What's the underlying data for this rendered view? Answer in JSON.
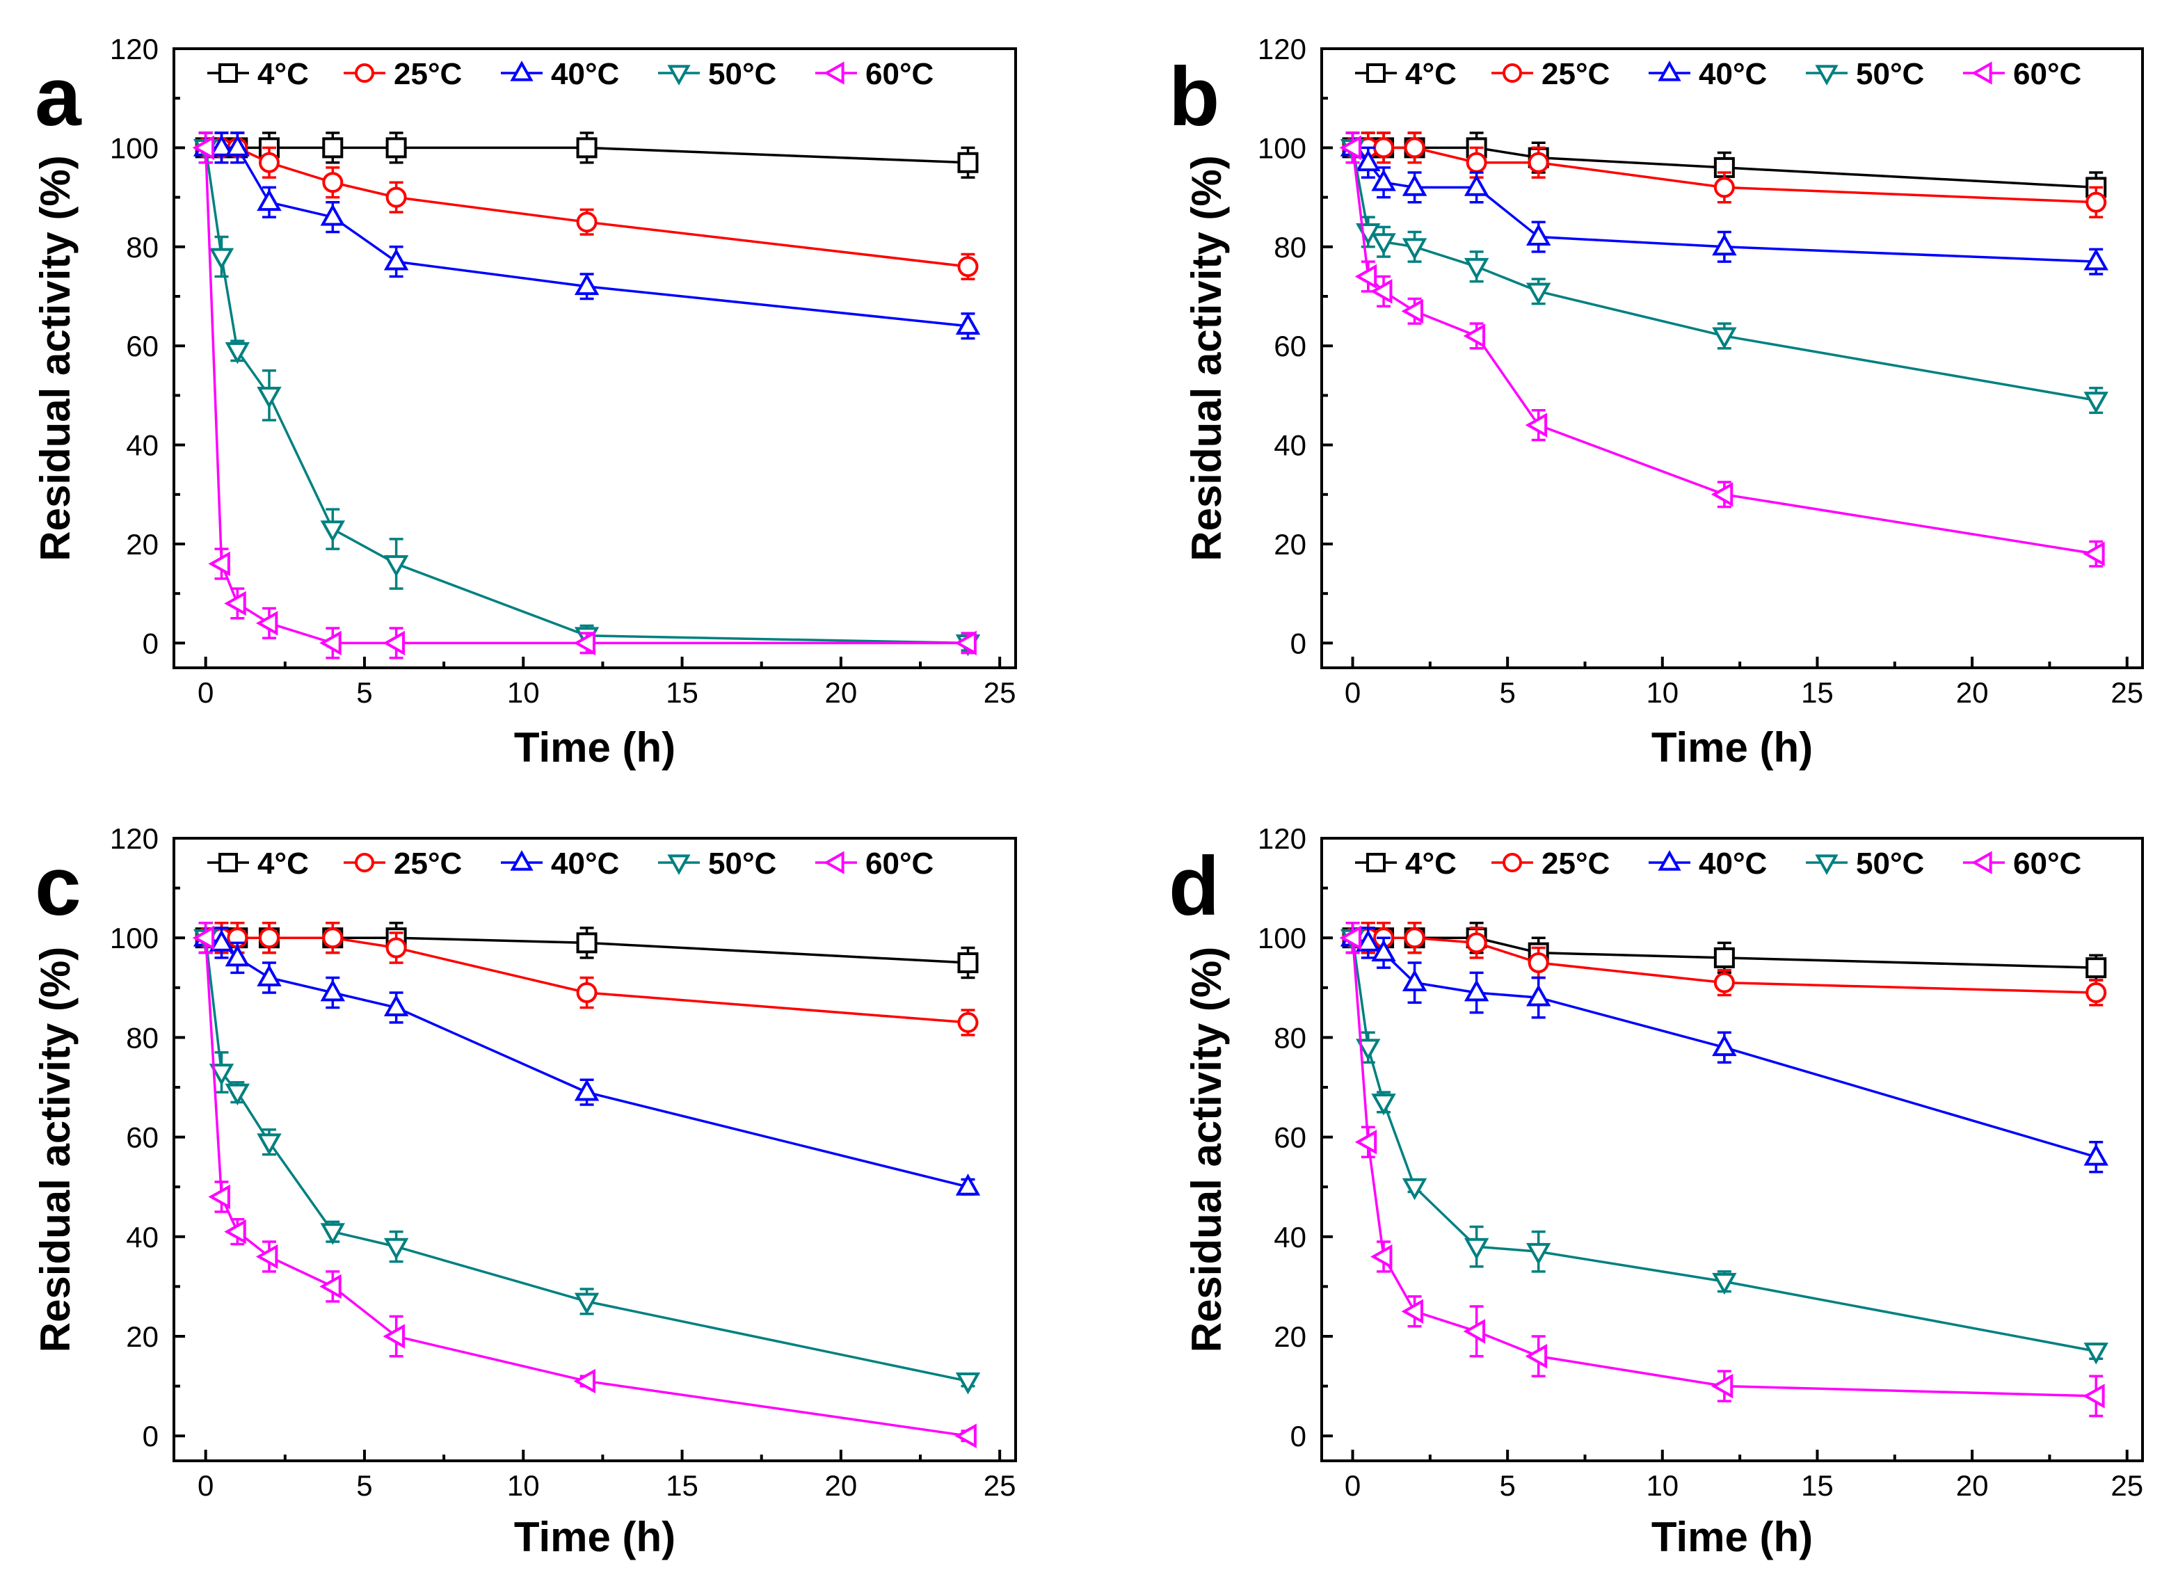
{
  "chart_data": [
    {
      "type": "line",
      "panel": "a",
      "xlabel": "Time (h)",
      "ylabel": "Residual activity (%)",
      "xlim": [
        -1,
        25.5
      ],
      "ylim": [
        -5,
        120
      ],
      "xticks": [
        0,
        5,
        10,
        15,
        20,
        25
      ],
      "yticks": [
        0,
        20,
        40,
        60,
        80,
        100,
        120
      ],
      "series": [
        {
          "name": "4°C",
          "color": "#000000",
          "marker": "square",
          "x": [
            0,
            0.5,
            1,
            2,
            4,
            6,
            12,
            24
          ],
          "y": [
            100,
            100,
            100,
            100,
            100,
            100,
            100,
            97
          ],
          "err": [
            3,
            3,
            3,
            3,
            3,
            3,
            3,
            3
          ]
        },
        {
          "name": "25°C",
          "color": "#ff0000",
          "marker": "circle",
          "x": [
            0,
            0.5,
            1,
            2,
            4,
            6,
            12,
            24
          ],
          "y": [
            100,
            100,
            100,
            97,
            93,
            90,
            85,
            76
          ],
          "err": [
            3,
            3,
            3,
            3,
            3,
            3,
            2.5,
            2.5
          ]
        },
        {
          "name": "40°C",
          "color": "#0000ff",
          "marker": "triangle-up",
          "x": [
            0,
            0.5,
            1,
            2,
            4,
            6,
            12,
            24
          ],
          "y": [
            100,
            100,
            100,
            89,
            86,
            77,
            72,
            64
          ],
          "err": [
            3,
            3,
            3,
            3,
            3,
            3,
            2.5,
            2.5
          ]
        },
        {
          "name": "50°C",
          "color": "#008080",
          "marker": "triangle-down",
          "x": [
            0,
            0.5,
            1,
            2,
            4,
            6,
            12,
            24
          ],
          "y": [
            100,
            78,
            59,
            50,
            23,
            16,
            1.5,
            0
          ],
          "err": [
            3,
            4,
            2,
            5,
            4,
            5,
            2,
            1.5
          ]
        },
        {
          "name": "60°C",
          "color": "#ff00ff",
          "marker": "triangle-left",
          "x": [
            0,
            0.5,
            1,
            2,
            4,
            6,
            12,
            24
          ],
          "y": [
            100,
            16,
            8,
            4,
            0,
            0,
            0,
            0
          ],
          "err": [
            3,
            3,
            3,
            3,
            3,
            3,
            2,
            2
          ]
        }
      ]
    },
    {
      "type": "line",
      "panel": "b",
      "xlabel": "Time (h)",
      "ylabel": "Residual activity (%)",
      "xlim": [
        -1,
        25.5
      ],
      "ylim": [
        -5,
        120
      ],
      "xticks": [
        0,
        5,
        10,
        15,
        20,
        25
      ],
      "yticks": [
        0,
        20,
        40,
        60,
        80,
        100,
        120
      ],
      "series": [
        {
          "name": "4°C",
          "color": "#000000",
          "marker": "square",
          "x": [
            0,
            0.5,
            1,
            2,
            4,
            6,
            12,
            24
          ],
          "y": [
            100,
            100,
            100,
            100,
            100,
            98,
            96,
            92
          ],
          "err": [
            3,
            3,
            3,
            3,
            3,
            3,
            3,
            3
          ]
        },
        {
          "name": "25°C",
          "color": "#ff0000",
          "marker": "circle",
          "x": [
            0,
            0.5,
            1,
            2,
            4,
            6,
            12,
            24
          ],
          "y": [
            100,
            100,
            100,
            100,
            97,
            97,
            92,
            89
          ],
          "err": [
            3,
            3,
            3,
            3,
            3,
            3,
            3,
            3
          ]
        },
        {
          "name": "40°C",
          "color": "#0000ff",
          "marker": "triangle-up",
          "x": [
            0,
            0.5,
            1,
            2,
            4,
            6,
            12,
            24
          ],
          "y": [
            100,
            97,
            93,
            92,
            92,
            82,
            80,
            77
          ],
          "err": [
            3,
            3,
            3,
            3,
            3,
            3,
            3,
            2.5
          ]
        },
        {
          "name": "50°C",
          "color": "#008080",
          "marker": "triangle-down",
          "x": [
            0,
            0.5,
            1,
            2,
            4,
            6,
            12,
            24
          ],
          "y": [
            100,
            83,
            81,
            80,
            76,
            71,
            62,
            49
          ],
          "err": [
            3,
            3,
            3,
            3,
            3,
            2.5,
            2.5,
            2.5
          ]
        },
        {
          "name": "60°C",
          "color": "#ff00ff",
          "marker": "triangle-left",
          "x": [
            0,
            0.5,
            1,
            2,
            4,
            6,
            12,
            24
          ],
          "y": [
            100,
            74,
            71,
            67,
            62,
            44,
            30,
            18
          ],
          "err": [
            3,
            3,
            3,
            2.5,
            2.5,
            3,
            2.5,
            2.5
          ]
        }
      ]
    },
    {
      "type": "line",
      "panel": "c",
      "xlabel": "Time (h)",
      "ylabel": "Residual activity (%)",
      "xlim": [
        -1,
        25.5
      ],
      "ylim": [
        -5,
        120
      ],
      "xticks": [
        0,
        5,
        10,
        15,
        20,
        25
      ],
      "yticks": [
        0,
        20,
        40,
        60,
        80,
        100,
        120
      ],
      "series": [
        {
          "name": "4°C",
          "color": "#000000",
          "marker": "square",
          "x": [
            0,
            0.5,
            1,
            2,
            4,
            6,
            12,
            24
          ],
          "y": [
            100,
            100,
            100,
            100,
            100,
            100,
            99,
            95
          ],
          "err": [
            3,
            3,
            3,
            3,
            3,
            3,
            3,
            3
          ]
        },
        {
          "name": "25°C",
          "color": "#ff0000",
          "marker": "circle",
          "x": [
            0,
            0.5,
            1,
            2,
            4,
            6,
            12,
            24
          ],
          "y": [
            100,
            100,
            100,
            100,
            100,
            98,
            89,
            83
          ],
          "err": [
            3,
            3,
            3,
            3,
            3,
            3,
            3,
            2.5
          ]
        },
        {
          "name": "40°C",
          "color": "#0000ff",
          "marker": "triangle-up",
          "x": [
            0,
            0.5,
            1,
            2,
            4,
            6,
            12,
            24
          ],
          "y": [
            100,
            99,
            96,
            92,
            89,
            86,
            69,
            50
          ],
          "err": [
            3,
            3,
            3,
            3,
            3,
            3,
            2.5,
            1.5
          ]
        },
        {
          "name": "50°C",
          "color": "#008080",
          "marker": "triangle-down",
          "x": [
            0,
            0.5,
            1,
            2,
            4,
            6,
            12,
            24
          ],
          "y": [
            100,
            73,
            69,
            59,
            41,
            38,
            27,
            11
          ],
          "err": [
            3,
            4,
            2,
            2.5,
            2,
            3,
            2.5,
            1
          ]
        },
        {
          "name": "60°C",
          "color": "#ff00ff",
          "marker": "triangle-left",
          "x": [
            0,
            0.5,
            1,
            2,
            4,
            6,
            12,
            24
          ],
          "y": [
            100,
            48,
            41,
            36,
            30,
            20,
            11,
            0
          ],
          "err": [
            3,
            3,
            2.5,
            3,
            3,
            4,
            1,
            1
          ]
        }
      ]
    },
    {
      "type": "line",
      "panel": "d",
      "xlabel": "Time (h)",
      "ylabel": "Residual activity (%)",
      "xlim": [
        -1,
        25.5
      ],
      "ylim": [
        -5,
        120
      ],
      "xticks": [
        0,
        5,
        10,
        15,
        20,
        25
      ],
      "yticks": [
        0,
        20,
        40,
        60,
        80,
        100,
        120
      ],
      "series": [
        {
          "name": "4°C",
          "color": "#000000",
          "marker": "square",
          "x": [
            0,
            0.5,
            1,
            2,
            4,
            6,
            12,
            24
          ],
          "y": [
            100,
            100,
            100,
            100,
            100,
            97,
            96,
            94
          ],
          "err": [
            3,
            3,
            3,
            3,
            3,
            3,
            3,
            2.5
          ]
        },
        {
          "name": "25°C",
          "color": "#ff0000",
          "marker": "circle",
          "x": [
            0,
            0.5,
            1,
            2,
            4,
            6,
            12,
            24
          ],
          "y": [
            100,
            100,
            100,
            100,
            99,
            95,
            91,
            89
          ],
          "err": [
            3,
            3,
            3,
            3,
            3,
            3,
            2.5,
            2.5
          ]
        },
        {
          "name": "40°C",
          "color": "#0000ff",
          "marker": "triangle-up",
          "x": [
            0,
            0.5,
            1,
            2,
            4,
            6,
            12,
            24
          ],
          "y": [
            100,
            99,
            97,
            91,
            89,
            88,
            78,
            56
          ],
          "err": [
            3,
            3,
            3,
            4,
            4,
            4,
            3,
            3
          ]
        },
        {
          "name": "50°C",
          "color": "#008080",
          "marker": "triangle-down",
          "x": [
            0,
            0.5,
            1,
            2,
            4,
            6,
            12,
            24
          ],
          "y": [
            100,
            78,
            67,
            50,
            38,
            37,
            31,
            17
          ],
          "err": [
            3,
            3,
            2,
            1,
            4,
            4,
            2,
            1.5
          ]
        },
        {
          "name": "60°C",
          "color": "#ff00ff",
          "marker": "triangle-left",
          "x": [
            0,
            0.5,
            1,
            2,
            4,
            6,
            12,
            24
          ],
          "y": [
            100,
            59,
            36,
            25,
            21,
            16,
            10,
            8
          ],
          "err": [
            3,
            3,
            3,
            3,
            5,
            4,
            3,
            4
          ]
        }
      ]
    }
  ]
}
